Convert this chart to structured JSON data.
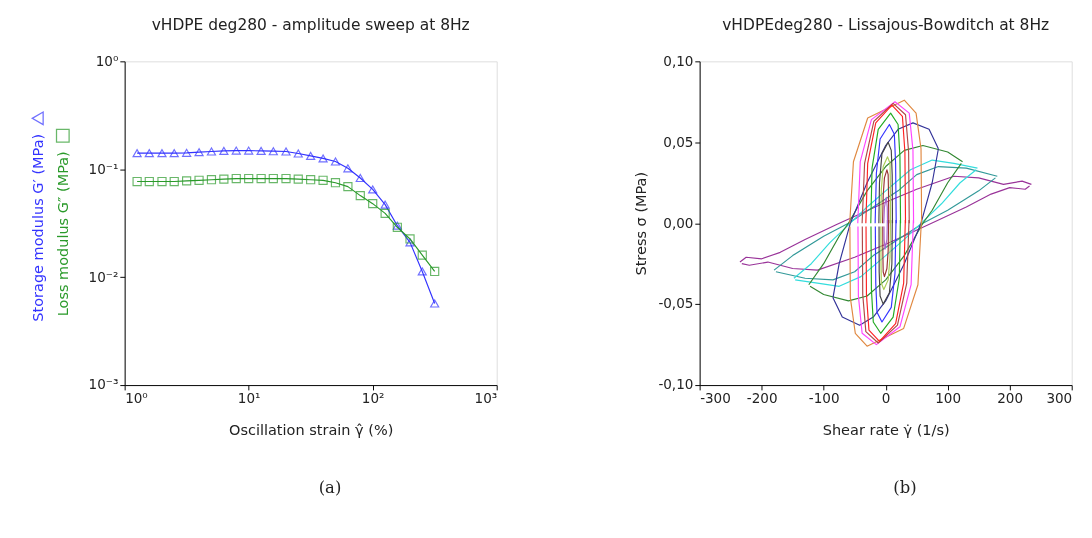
{
  "chart_data": [
    {
      "type": "line",
      "title": "vHDPE deg280 - amplitude sweep at 8Hz",
      "xlabel": "Oscillation strain  γ̂  (%)",
      "log": "xy",
      "grid": false,
      "legend": "left",
      "x": [
        1.26,
        1.58,
        2,
        2.51,
        3.16,
        3.98,
        5.01,
        6.31,
        7.94,
        10,
        12.6,
        15.8,
        20,
        25.1,
        31.6,
        39.8,
        50.1,
        63.1,
        79.4,
        100,
        126,
        158,
        200,
        251,
        316
      ],
      "series": [
        {
          "name": "Storage modulus  G′ (MPa)",
          "color": "#3333ff",
          "marker": "triangle",
          "values": [
            0.141,
            0.141,
            0.141,
            0.141,
            0.142,
            0.144,
            0.146,
            0.148,
            0.149,
            0.149,
            0.148,
            0.147,
            0.146,
            0.14,
            0.133,
            0.126,
            0.118,
            0.102,
            0.083,
            0.065,
            0.047,
            0.03,
            0.021,
            0.0113,
            0.0057
          ]
        },
        {
          "name": "Loss modulus  G″ (MPa)",
          "color": "#2a9a2a",
          "marker": "square",
          "values": [
            0.077,
            0.077,
            0.077,
            0.077,
            0.078,
            0.079,
            0.08,
            0.081,
            0.082,
            0.082,
            0.082,
            0.082,
            0.082,
            0.081,
            0.08,
            0.079,
            0.075,
            0.069,
            0.057,
            0.048,
            0.039,
            0.029,
            0.0226,
            0.016,
            0.0113
          ]
        }
      ],
      "xlim": [
        1,
        1000
      ],
      "ylim": [
        0.001,
        1
      ],
      "xticks": [
        {
          "value": 1,
          "label": "10⁰"
        },
        {
          "value": 10,
          "label": "10¹"
        },
        {
          "value": 100,
          "label": "10²"
        },
        {
          "value": 1000,
          "label": "10³"
        }
      ],
      "yticks": [
        {
          "value": 0.001,
          "label": "10⁻³"
        },
        {
          "value": 0.01,
          "label": "10⁻²"
        },
        {
          "value": 0.1,
          "label": "10⁻¹"
        },
        {
          "value": 1,
          "label": "10⁰"
        }
      ],
      "annotations": [
        "(a)"
      ]
    },
    {
      "type": "line",
      "title": "vHDPEdeg280 - Lissajous-Bowditch at 8Hz",
      "xlabel": "Shear rate  γ̇  (1/s)",
      "ylabel": "Stress  σ  (MPa)",
      "grid": false,
      "series": [
        {
          "color": "#993399",
          "x": [
            -235,
            -225,
            -200,
            -170,
            -130,
            -80,
            -40,
            0,
            50,
            110,
            150,
            190,
            220,
            235
          ],
          "values": [
            -0.024,
            -0.021,
            -0.022,
            -0.018,
            -0.01,
            -0.001,
            0.006,
            0.013,
            0.021,
            0.029,
            0.028,
            0.024,
            0.026,
            0.024
          ]
        },
        {
          "color": "#993399",
          "x": [
            -232,
            -220,
            -190,
            -150,
            -110,
            -50,
            0,
            40,
            80,
            130,
            170,
            200,
            225,
            232
          ],
          "values": [
            -0.025,
            -0.026,
            -0.024,
            -0.028,
            -0.029,
            -0.021,
            -0.013,
            -0.006,
            0.001,
            0.01,
            0.018,
            0.022,
            0.021,
            0.023
          ]
        },
        {
          "color": "#339999",
          "x": [
            -180,
            -150,
            -100,
            -60,
            -20,
            20,
            50,
            85,
            130,
            180
          ],
          "values": [
            -0.029,
            -0.02,
            -0.008,
            0,
            0.01,
            0.02,
            0.03,
            0.035,
            0.034,
            0.029
          ]
        },
        {
          "color": "#339999",
          "x": [
            -177,
            -130,
            -85,
            -50,
            -20,
            20,
            60,
            100,
            150,
            177
          ],
          "values": [
            -0.03,
            -0.034,
            -0.035,
            -0.03,
            -0.02,
            -0.01,
            0,
            0.008,
            0.02,
            0.028
          ]
        },
        {
          "color": "#33dddd",
          "x": [
            -148,
            -120,
            -90,
            -60,
            -30,
            0,
            40,
            75,
            110,
            148
          ],
          "values": [
            -0.034,
            -0.025,
            -0.012,
            -0.001,
            0.01,
            0.02,
            0.033,
            0.039,
            0.037,
            0.034
          ]
        },
        {
          "color": "#33dddd",
          "x": [
            -146,
            -110,
            -75,
            -40,
            0,
            30,
            60,
            90,
            120,
            146
          ],
          "values": [
            -0.035,
            -0.037,
            -0.039,
            -0.033,
            -0.02,
            -0.01,
            0.001,
            0.012,
            0.025,
            0.033
          ]
        },
        {
          "color": "#338833",
          "x": [
            -124,
            -100,
            -75,
            -60,
            -30,
            0,
            30,
            60,
            100,
            124
          ],
          "values": [
            -0.038,
            -0.025,
            -0.008,
            0,
            0.02,
            0.035,
            0.045,
            0.048,
            0.044,
            0.038
          ]
        },
        {
          "color": "#338833",
          "x": [
            -122,
            -100,
            -60,
            -30,
            0,
            30,
            60,
            75,
            100,
            122
          ],
          "values": [
            -0.039,
            -0.044,
            -0.048,
            -0.045,
            -0.035,
            -0.02,
            0,
            0.008,
            0.025,
            0.037
          ]
        },
        {
          "color": "#333399",
          "x": [
            -85,
            -75,
            -57,
            -30,
            0,
            20,
            44,
            70,
            85
          ],
          "values": [
            -0.046,
            -0.025,
            0,
            0.025,
            0.048,
            0.058,
            0.062,
            0.058,
            0.046
          ]
        },
        {
          "color": "#333399",
          "x": [
            -85,
            -70,
            -42,
            -20,
            0,
            30,
            57,
            75,
            85
          ],
          "values": [
            -0.046,
            -0.058,
            -0.063,
            -0.058,
            -0.048,
            -0.025,
            0,
            0.025,
            0.046
          ]
        },
        {
          "color": "#e08840",
          "x": [
            -58,
            -52,
            -29,
            30,
            49,
            57,
            58
          ],
          "values": [
            0,
            0.038,
            0.065,
            0.076,
            0.068,
            0.046,
            0
          ]
        },
        {
          "color": "#e08840",
          "x": [
            -57.7,
            -57,
            -49,
            -30,
            29,
            52,
            57.7
          ],
          "values": [
            -0.002,
            -0.046,
            -0.068,
            -0.076,
            -0.065,
            -0.038,
            0.002
          ]
        },
        {
          "color": "#ff44ff",
          "x": [
            -45,
            -41,
            -23,
            15,
            38,
            44,
            45
          ],
          "values": [
            0,
            0.038,
            0.064,
            0.075,
            0.068,
            0.045,
            0
          ]
        },
        {
          "color": "#ff44ff",
          "x": [
            -44.7,
            -44,
            -38,
            -15,
            23,
            41,
            44.7
          ],
          "values": [
            -0.002,
            -0.045,
            -0.068,
            -0.075,
            -0.064,
            -0.038,
            0.002
          ]
        },
        {
          "color": "#b04848",
          "x": [
            -38,
            -34,
            -19,
            12,
            32,
            37,
            38
          ],
          "values": [
            0,
            0.037,
            0.063,
            0.074,
            0.067,
            0.044,
            0
          ]
        },
        {
          "color": "#b04848",
          "x": [
            -37.7,
            -37,
            -32,
            -12,
            19,
            34,
            37.7
          ],
          "values": [
            -0.002,
            -0.044,
            -0.067,
            -0.074,
            -0.063,
            -0.037,
            0.002
          ]
        },
        {
          "color": "#ff2222",
          "x": [
            -32,
            -29,
            -16,
            10,
            27,
            31,
            32
          ],
          "values": [
            0,
            0.037,
            0.062,
            0.073,
            0.066,
            0.044,
            0
          ]
        },
        {
          "color": "#ff2222",
          "x": [
            -31.7,
            -31,
            -27,
            -10,
            16,
            29,
            31.7
          ],
          "values": [
            -0.002,
            -0.044,
            -0.066,
            -0.073,
            -0.062,
            -0.037,
            0.002
          ]
        },
        {
          "color": "#22aa22",
          "x": [
            -24,
            -22,
            -12,
            8,
            20,
            23,
            24
          ],
          "values": [
            0,
            0.034,
            0.058,
            0.068,
            0.061,
            0.041,
            0
          ]
        },
        {
          "color": "#22aa22",
          "x": [
            -23.7,
            -23,
            -20,
            -8,
            12,
            22,
            23.7
          ],
          "values": [
            -0.002,
            -0.041,
            -0.061,
            -0.068,
            -0.058,
            -0.034,
            0.002
          ]
        },
        {
          "color": "#3333ff",
          "x": [
            -17,
            -15,
            -9,
            6,
            14,
            16,
            17
          ],
          "values": [
            0,
            0.031,
            0.052,
            0.061,
            0.055,
            0.037,
            0
          ]
        },
        {
          "color": "#3333ff",
          "x": [
            -16.7,
            -16,
            -14,
            -6,
            9,
            15,
            16.7
          ],
          "values": [
            -0.002,
            -0.037,
            -0.055,
            -0.061,
            -0.052,
            -0.031,
            0.002
          ]
        },
        {
          "color": "#444444",
          "x": [
            -11,
            -10,
            -6,
            4,
            9,
            10.5,
            11
          ],
          "values": [
            0,
            0.025,
            0.043,
            0.05,
            0.045,
            0.03,
            0
          ]
        },
        {
          "color": "#444444",
          "x": [
            -10.7,
            -10.5,
            -9,
            -4,
            6,
            10,
            10.7
          ],
          "values": [
            -0.002,
            -0.03,
            -0.045,
            -0.05,
            -0.043,
            -0.025,
            0.002
          ]
        },
        {
          "color": "#aacc55",
          "x": [
            -8,
            -7,
            -4,
            3,
            7,
            7.5,
            8
          ],
          "values": [
            0,
            0.021,
            0.035,
            0.041,
            0.037,
            0.025,
            0
          ]
        },
        {
          "color": "#aacc55",
          "x": [
            -7.7,
            -7.5,
            -7,
            -3,
            4,
            7,
            7.7
          ],
          "values": [
            -0.002,
            -0.025,
            -0.037,
            -0.041,
            -0.035,
            -0.021,
            0.002
          ]
        },
        {
          "color": "#993333",
          "x": [
            -5,
            -4,
            -2,
            2,
            4,
            4.5,
            5
          ],
          "values": [
            0,
            0.017,
            0.028,
            0.033,
            0.03,
            0.02,
            0
          ]
        },
        {
          "color": "#993333",
          "x": [
            -4.7,
            -4.5,
            -4,
            -2,
            2,
            4,
            4.7
          ],
          "values": [
            -0.002,
            -0.02,
            -0.03,
            -0.033,
            -0.028,
            -0.017,
            0.002
          ]
        },
        {
          "color": "#aa66cc",
          "x": [
            -3,
            -2,
            1,
            2.5,
            3
          ],
          "values": [
            0,
            0.01,
            0.016,
            0.01,
            0
          ]
        },
        {
          "color": "#aa66cc",
          "x": [
            -2.7,
            -2.5,
            -1,
            2,
            2.7
          ],
          "values": [
            -0.002,
            -0.01,
            -0.016,
            -0.01,
            0.002
          ]
        }
      ],
      "xlim": [
        -300,
        300
      ],
      "ylim": [
        -0.1,
        0.1
      ],
      "xticks": [
        -300,
        -200,
        -100,
        0,
        100,
        200,
        300
      ],
      "yticks": [
        {
          "value": -0.1,
          "label": "-0,10"
        },
        {
          "value": -0.05,
          "label": "-0,05"
        },
        {
          "value": 0,
          "label": "0,00"
        },
        {
          "value": 0.05,
          "label": "0,05"
        },
        {
          "value": 0.1,
          "label": "0,10"
        }
      ],
      "annotations": [
        "(b)"
      ]
    }
  ]
}
